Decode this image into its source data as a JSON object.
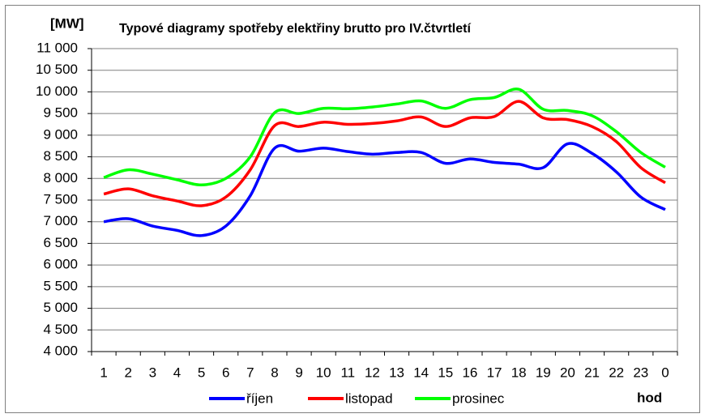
{
  "chart_data": {
    "type": "line",
    "title": "Typové diagramy spotřeby elektřiny brutto pro IV.čtvrtletí",
    "y_label": "[MW]",
    "x_label": "hod",
    "categories": [
      "1",
      "2",
      "3",
      "4",
      "5",
      "6",
      "7",
      "8",
      "9",
      "10",
      "11",
      "12",
      "13",
      "14",
      "15",
      "16",
      "17",
      "18",
      "19",
      "20",
      "21",
      "22",
      "23",
      "0"
    ],
    "series": [
      {
        "name": "říjen",
        "color": "#0000ff",
        "values": [
          7000,
          7070,
          6900,
          6800,
          6680,
          6900,
          7600,
          8700,
          8630,
          8700,
          8620,
          8560,
          8600,
          8600,
          8350,
          8450,
          8370,
          8330,
          8250,
          8800,
          8580,
          8150,
          7570,
          7280
        ]
      },
      {
        "name": "listopad",
        "color": "#ff0000",
        "values": [
          7640,
          7760,
          7600,
          7480,
          7370,
          7570,
          8200,
          9220,
          9200,
          9300,
          9250,
          9270,
          9330,
          9420,
          9200,
          9400,
          9430,
          9780,
          9400,
          9360,
          9200,
          8850,
          8250,
          7900
        ]
      },
      {
        "name": "prosinec",
        "color": "#00ff00",
        "values": [
          8020,
          8200,
          8100,
          7970,
          7850,
          8000,
          8500,
          9520,
          9500,
          9620,
          9610,
          9650,
          9720,
          9790,
          9620,
          9820,
          9870,
          10060,
          9600,
          9570,
          9450,
          9080,
          8600,
          8260
        ]
      }
    ],
    "ylim": [
      4000,
      11000
    ],
    "yticks": [
      {
        "value": 4000,
        "label": "4 000"
      },
      {
        "value": 4500,
        "label": "4 500"
      },
      {
        "value": 5000,
        "label": "5 000"
      },
      {
        "value": 5500,
        "label": "5 500"
      },
      {
        "value": 6000,
        "label": "6 000"
      },
      {
        "value": 6500,
        "label": "6 500"
      },
      {
        "value": 7000,
        "label": "7 000"
      },
      {
        "value": 7500,
        "label": "7 500"
      },
      {
        "value": 8000,
        "label": "8 000"
      },
      {
        "value": 8500,
        "label": "8 500"
      },
      {
        "value": 9000,
        "label": "9 000"
      },
      {
        "value": 9500,
        "label": "9 500"
      },
      {
        "value": 10000,
        "label": "10 000"
      },
      {
        "value": 10500,
        "label": "10 500"
      },
      {
        "value": 11000,
        "label": "11 000"
      }
    ],
    "grid": true,
    "legend": "bottom"
  }
}
